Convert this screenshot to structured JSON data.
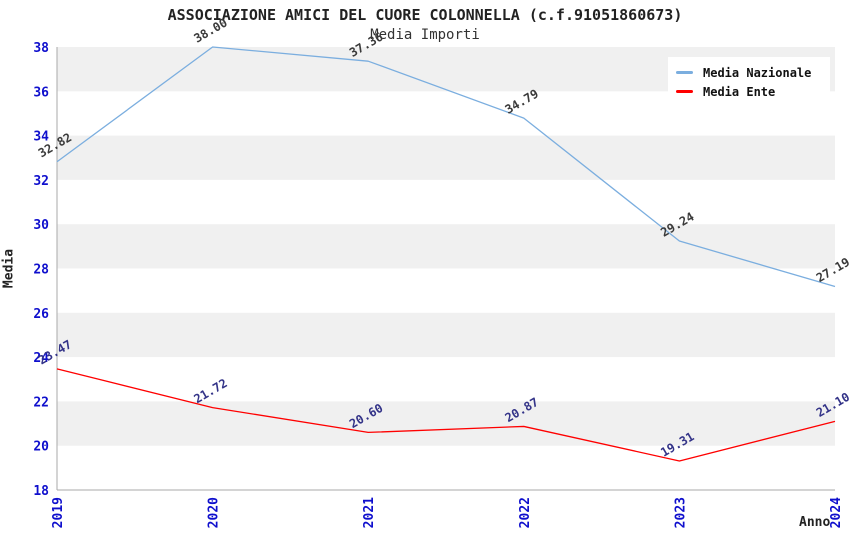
{
  "title": "ASSOCIAZIONE AMICI DEL CUORE COLONNELLA (c.f.91051860673)",
  "subtitle": "Media Importi",
  "legend": {
    "position": "top-right",
    "items": [
      {
        "label": "Media Nazionale",
        "color": "#7BAEDF"
      },
      {
        "label": "Media Ente",
        "color": "#FF0000"
      }
    ]
  },
  "chart_data": {
    "type": "line",
    "title": "ASSOCIAZIONE AMICI DEL CUORE COLONNELLA (c.f.91051860673)",
    "subtitle": "Media Importi",
    "categories": [
      "2019",
      "2020",
      "2021",
      "2022",
      "2023",
      "2024"
    ],
    "series": [
      {
        "name": "Media Nazionale",
        "color": "#7BAEDF",
        "label_color": "#3a3a3a",
        "values": [
          32.82,
          38.0,
          37.36,
          34.79,
          29.24,
          27.19
        ]
      },
      {
        "name": "Media Ente",
        "color": "#FF0000",
        "label_color": "#333388",
        "values": [
          23.47,
          21.72,
          20.6,
          20.87,
          19.31,
          21.1
        ]
      }
    ],
    "xlabel": "Anno",
    "ylabel": "Media",
    "ylim": [
      18,
      38
    ],
    "ytick_step": 2,
    "grid": "alternating-horizontal-bands",
    "band_color": "#f0f0f0",
    "tick_label_color": "#0f0fcd",
    "axis_line_color": "#aaaaaa",
    "legend_position": "top-right"
  }
}
